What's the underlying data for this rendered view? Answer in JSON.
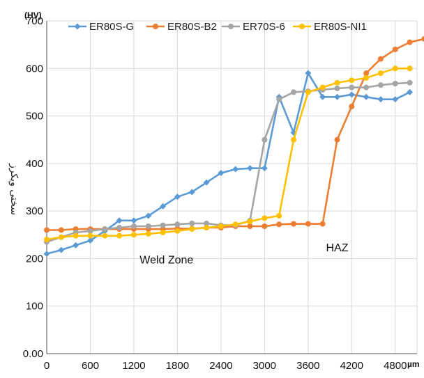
{
  "chart_data": {
    "type": "line",
    "title": "",
    "xlabel": "",
    "ylabel": "سختی ویکرز",
    "x_unit": "µm",
    "y_unit": "(HV)",
    "xlim": [
      0,
      5100
    ],
    "ylim": [
      0,
      700
    ],
    "x_ticks": [
      "0",
      "600",
      "1200",
      "1800",
      "2400",
      "3000",
      "3600",
      "4200",
      "4800"
    ],
    "x_tick_values": [
      0,
      600,
      1200,
      1800,
      2400,
      3000,
      3600,
      4200,
      4800
    ],
    "y_ticks": [
      "0.00",
      "100",
      "200",
      "300",
      "400",
      "500",
      "600",
      "700"
    ],
    "y_tick_values": [
      0,
      100,
      200,
      300,
      400,
      500,
      600,
      700
    ],
    "grid": true,
    "legend_position": "top",
    "annotations": [
      {
        "text": "Weld Zone",
        "x": 1650,
        "y": 190
      },
      {
        "text": "HAZ",
        "x": 4000,
        "y": 215
      }
    ],
    "series": [
      {
        "name": "ER80S-G",
        "color": "#5b9bd5",
        "marker": "diamond",
        "x": [
          0,
          200,
          400,
          600,
          800,
          1000,
          1200,
          1400,
          1600,
          1800,
          2000,
          2200,
          2400,
          2600,
          2800,
          3000,
          3200,
          3400,
          3600,
          3800,
          4000,
          4200,
          4400,
          4600,
          4800,
          5000
        ],
        "y": [
          210,
          218,
          228,
          238,
          258,
          280,
          280,
          290,
          310,
          330,
          340,
          360,
          380,
          388,
          390,
          390,
          540,
          465,
          590,
          540,
          540,
          545,
          540,
          535,
          535,
          550
        ]
      },
      {
        "name": "ER80S-B2",
        "color": "#ed7d31",
        "marker": "circle",
        "x": [
          0,
          200,
          400,
          600,
          800,
          1000,
          1200,
          1400,
          1600,
          1800,
          2000,
          2200,
          2400,
          2600,
          2800,
          3000,
          3200,
          3400,
          3600,
          3800,
          4000,
          4200,
          4400,
          4600,
          4800,
          5000,
          5200
        ],
        "y": [
          260,
          260,
          262,
          262,
          262,
          262,
          262,
          262,
          262,
          263,
          263,
          265,
          265,
          268,
          268,
          268,
          272,
          273,
          273,
          273,
          450,
          520,
          590,
          620,
          640,
          655,
          662
        ]
      },
      {
        "name": "ER70S-6",
        "color": "#a5a5a5",
        "marker": "circle",
        "x": [
          0,
          200,
          400,
          600,
          800,
          1000,
          1200,
          1400,
          1600,
          1800,
          2000,
          2200,
          2400,
          2600,
          2800,
          3000,
          3200,
          3400,
          3600,
          3800,
          4000,
          4200,
          4400,
          4600,
          4800,
          5000
        ],
        "y": [
          235,
          245,
          255,
          258,
          262,
          265,
          268,
          268,
          270,
          272,
          274,
          274,
          270,
          270,
          280,
          450,
          535,
          550,
          552,
          555,
          558,
          560,
          560,
          565,
          568,
          570
        ]
      },
      {
        "name": "ER80S-NI1",
        "color": "#ffc000",
        "marker": "circle",
        "x": [
          0,
          200,
          400,
          600,
          800,
          1000,
          1200,
          1400,
          1600,
          1800,
          2000,
          2200,
          2400,
          2600,
          2800,
          3000,
          3200,
          3400,
          3600,
          3800,
          4000,
          4200,
          4400,
          4600,
          4800,
          5000
        ],
        "y": [
          240,
          245,
          248,
          248,
          248,
          248,
          250,
          252,
          255,
          258,
          262,
          265,
          268,
          272,
          278,
          285,
          290,
          450,
          550,
          560,
          570,
          575,
          580,
          590,
          600,
          600
        ]
      }
    ]
  }
}
